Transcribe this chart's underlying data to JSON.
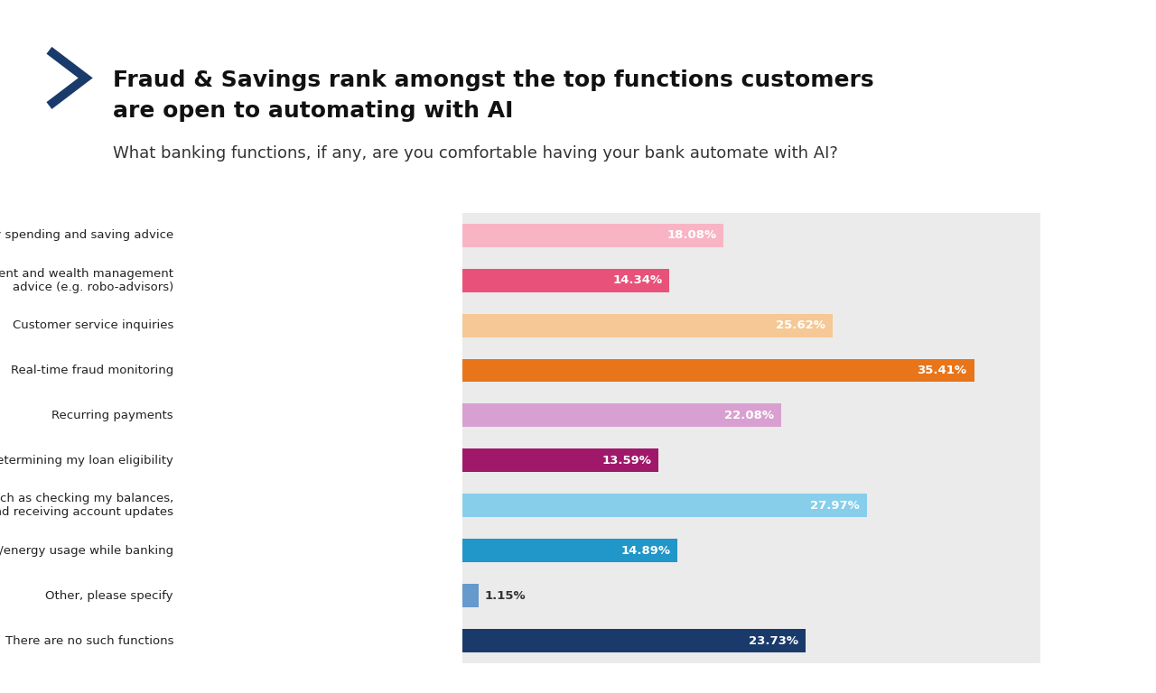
{
  "title_line1": "Fraud & Savings rank amongst the top functions customers",
  "title_line2": "are open to automating with AI",
  "subtitle": "What banking functions, if any, are you comfortable having your bank automate with AI?",
  "categories": [
    "Everyday spending and saving advice",
    "Long-term investment and wealth management\nadvice (e.g. robo-advisors)",
    "Customer service inquiries",
    "Real-time fraud monitoring",
    "Recurring payments",
    "Determining my loan eligibility",
    "Everyday tasks such as checking my balances,\ntransferring funds and receiving account updates",
    "Reducing my carbon/energy usage while banking",
    "Other, please specify",
    "There are no such functions"
  ],
  "values": [
    18.08,
    14.34,
    25.62,
    35.41,
    22.08,
    13.59,
    27.97,
    14.89,
    1.15,
    23.73
  ],
  "colors": [
    "#F9B4C4",
    "#E8527A",
    "#F5C895",
    "#E8751A",
    "#D8A0D0",
    "#A0186A",
    "#87CEEB",
    "#2196C8",
    "#6699CC",
    "#1A3A6B"
  ],
  "background_color": "#EBEBEB",
  "outer_background": "#FFFFFF",
  "bar_label_color": "#FFFFFF",
  "value_fontsize": 9.5,
  "category_fontsize": 9.5,
  "title_fontsize": 18,
  "subtitle_fontsize": 13,
  "gft_box_color": "#1A3A6B",
  "chevron_color": "#1A3A6B"
}
